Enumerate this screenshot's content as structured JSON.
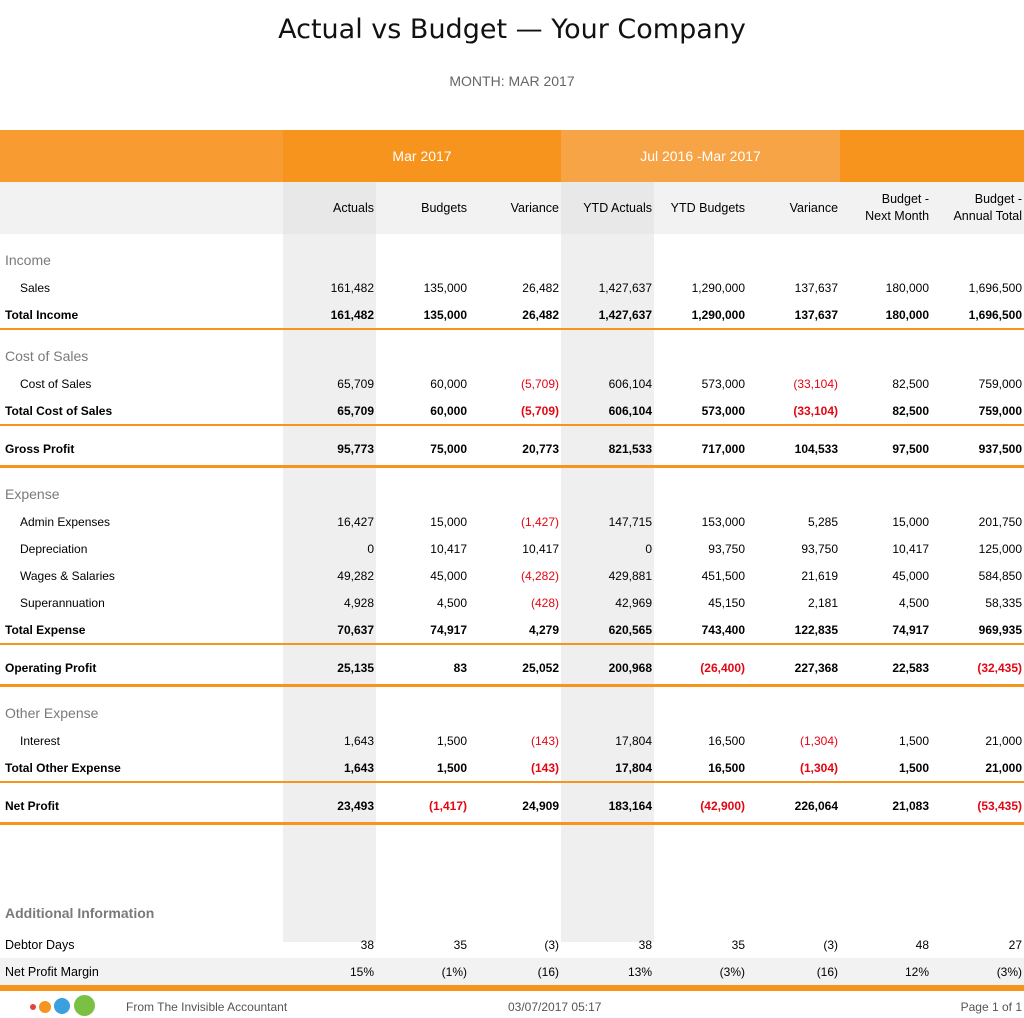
{
  "header": {
    "title": "Actual vs Budget — Your Company",
    "subtitle": "MONTH: MAR 2017"
  },
  "bands": {
    "month": "Mar 2017",
    "ytd": "Jul 2016 -Mar 2017"
  },
  "columns": [
    "Actuals",
    "Budgets",
    "Variance",
    "YTD Actuals",
    "YTD Budgets",
    "Variance",
    "Budget -\nNext Month",
    "Budget -\nAnnual Total"
  ],
  "sections": [
    {
      "name": "Income",
      "items": [
        {
          "label": "Sales",
          "values": [
            "161,482",
            "135,000",
            "26,482",
            "1,427,637",
            "1,290,000",
            "137,637",
            "180,000",
            "1,696,500"
          ]
        }
      ],
      "total": {
        "label": "Total Income",
        "values": [
          "161,482",
          "135,000",
          "26,482",
          "1,427,637",
          "1,290,000",
          "137,637",
          "180,000",
          "1,696,500"
        ]
      }
    },
    {
      "name": "Cost of Sales",
      "items": [
        {
          "label": "Cost of Sales",
          "values": [
            "65,709",
            "60,000",
            "(5,709)",
            "606,104",
            "573,000",
            "(33,104)",
            "82,500",
            "759,000"
          ]
        }
      ],
      "total": {
        "label": "Total Cost of Sales",
        "values": [
          "65,709",
          "60,000",
          "(5,709)",
          "606,104",
          "573,000",
          "(33,104)",
          "82,500",
          "759,000"
        ]
      },
      "profit": {
        "label": "Gross Profit",
        "values": [
          "95,773",
          "75,000",
          "20,773",
          "821,533",
          "717,000",
          "104,533",
          "97,500",
          "937,500"
        ]
      }
    },
    {
      "name": "Expense",
      "items": [
        {
          "label": "Admin Expenses",
          "values": [
            "16,427",
            "15,000",
            "(1,427)",
            "147,715",
            "153,000",
            "5,285",
            "15,000",
            "201,750"
          ]
        },
        {
          "label": "Depreciation",
          "values": [
            "0",
            "10,417",
            "10,417",
            "0",
            "93,750",
            "93,750",
            "10,417",
            "125,000"
          ]
        },
        {
          "label": "Wages & Salaries",
          "values": [
            "49,282",
            "45,000",
            "(4,282)",
            "429,881",
            "451,500",
            "21,619",
            "45,000",
            "584,850"
          ]
        },
        {
          "label": "Superannuation",
          "values": [
            "4,928",
            "4,500",
            "(428)",
            "42,969",
            "45,150",
            "2,181",
            "4,500",
            "58,335"
          ]
        }
      ],
      "total": {
        "label": "Total Expense",
        "values": [
          "70,637",
          "74,917",
          "4,279",
          "620,565",
          "743,400",
          "122,835",
          "74,917",
          "969,935"
        ]
      },
      "profit": {
        "label": "Operating Profit",
        "values": [
          "25,135",
          "83",
          "25,052",
          "200,968",
          "(26,400)",
          "227,368",
          "22,583",
          "(32,435)"
        ]
      }
    },
    {
      "name": "Other Expense",
      "items": [
        {
          "label": "Interest",
          "values": [
            "1,643",
            "1,500",
            "(143)",
            "17,804",
            "16,500",
            "(1,304)",
            "1,500",
            "21,000"
          ]
        }
      ],
      "total": {
        "label": "Total Other Expense",
        "values": [
          "1,643",
          "1,500",
          "(143)",
          "17,804",
          "16,500",
          "(1,304)",
          "1,500",
          "21,000"
        ]
      },
      "profit": {
        "label": "Net Profit",
        "values": [
          "23,493",
          "(1,417)",
          "24,909",
          "183,164",
          "(42,900)",
          "226,064",
          "21,083",
          "(53,435)"
        ]
      }
    }
  ],
  "additional": {
    "title": "Additional Information",
    "rows": [
      {
        "label": "Debtor Days",
        "values": [
          "38",
          "35",
          "(3)",
          "38",
          "35",
          "(3)",
          "48",
          "27"
        ]
      },
      {
        "label": "Net Profit Margin",
        "values": [
          "15%",
          "(1%)",
          "(16)",
          "13%",
          "(3%)",
          "(16)",
          "12%",
          "(3%)"
        ]
      }
    ]
  },
  "colors": {
    "accent": "#f7941d",
    "negative": "#e30613",
    "dots": [
      "#e8413c",
      "#f7941d",
      "#3aa0e0",
      "#7ac143"
    ]
  },
  "footer": {
    "source": "From The Invisible Accountant",
    "timestamp": "03/07/2017 05:17",
    "page": "Page 1 of 1"
  }
}
